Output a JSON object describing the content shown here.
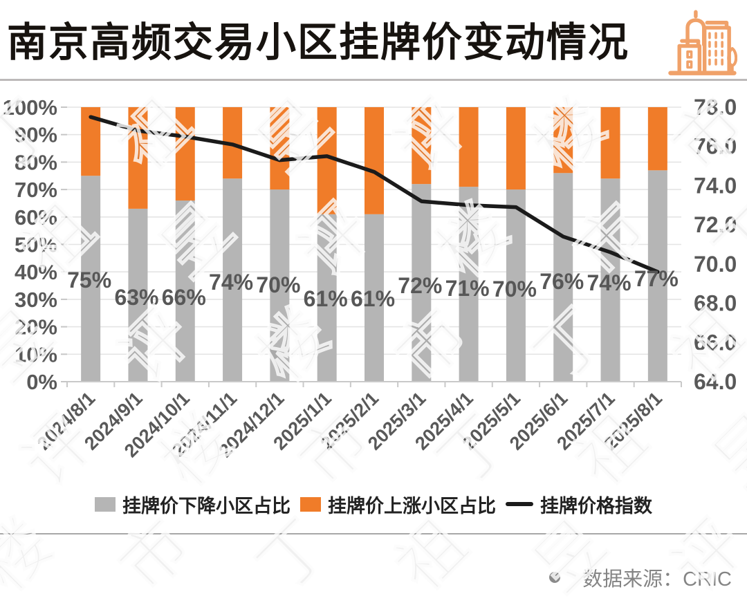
{
  "header": {
    "title": "南京高频交易小区挂牌价变动情况"
  },
  "chart_data": {
    "type": "bar",
    "subtype": "stacked-bars-with-line",
    "title": "南京高频交易小区挂牌价变动情况",
    "categories": [
      "2024/8/1",
      "2024/9/1",
      "2024/10/1",
      "2024/11/1",
      "2024/12/1",
      "2025/1/1",
      "2025/2/1",
      "2025/3/1",
      "2025/4/1",
      "2025/5/1",
      "2025/6/1",
      "2025/7/1",
      "2025/8/1"
    ],
    "series": [
      {
        "name": "挂牌价下降小区占比",
        "type": "bar",
        "stack": "share",
        "axis": "left",
        "color": "#B5B5B5",
        "unit": "%",
        "values": [
          75,
          63,
          66,
          74,
          70,
          61,
          61,
          72,
          71,
          70,
          76,
          74,
          77
        ]
      },
      {
        "name": "挂牌价上涨小区占比",
        "type": "bar",
        "stack": "share",
        "axis": "left",
        "color": "#F07C29",
        "unit": "%",
        "values": [
          25,
          37,
          34,
          26,
          30,
          39,
          39,
          28,
          29,
          30,
          24,
          26,
          23
        ]
      },
      {
        "name": "挂牌价格指数",
        "type": "line",
        "axis": "right",
        "color": "#1B1B1B",
        "values": [
          77.5,
          76.8,
          76.5,
          76.1,
          75.3,
          75.5,
          74.7,
          73.2,
          73.0,
          72.9,
          71.4,
          70.6,
          69.6
        ]
      }
    ],
    "bar_labels": [
      "75%",
      "63%",
      "66%",
      "74%",
      "70%",
      "61%",
      "61%",
      "72%",
      "71%",
      "70%",
      "76%",
      "74%",
      "77%"
    ],
    "left_axis": {
      "min": 0,
      "max": 100,
      "step": 10,
      "format": "percent",
      "tick_labels": [
        "0%",
        "10%",
        "20%",
        "30%",
        "40%",
        "50%",
        "60%",
        "70%",
        "80%",
        "90%",
        "100%"
      ]
    },
    "right_axis": {
      "min": 64,
      "max": 78,
      "step": 2,
      "format": "one-decimal",
      "tick_labels": [
        "64.0",
        "66.0",
        "68.0",
        "70.0",
        "72.0",
        "74.0",
        "76.0",
        "78.0"
      ]
    },
    "grid": true,
    "legend_position": "bottom"
  },
  "source": {
    "text": "数据来源：CRIC"
  },
  "watermark": {
    "text": "丁祖昱评楼市"
  },
  "colors": {
    "bar_down": "#B5B5B5",
    "bar_up": "#F07C29",
    "index_line": "#1B1B1B",
    "axis_text": "#595959",
    "icon_orange": "#F0A169"
  }
}
